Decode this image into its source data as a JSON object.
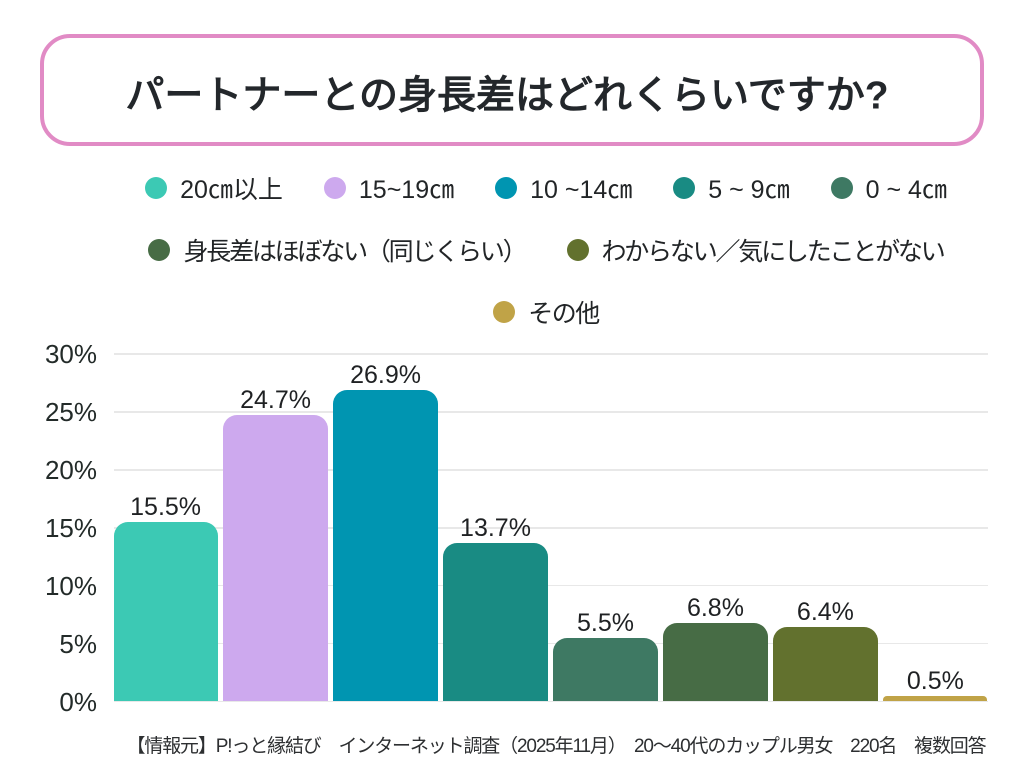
{
  "title": {
    "text": "パートナーとの身長差はどれくらいですか?",
    "border_color": "#e18bc5",
    "text_color": "#23272b"
  },
  "chart_data": {
    "type": "bar",
    "title": "パートナーとの身長差はどれくらいですか?",
    "categories": [
      "20㎝以上",
      "15~19㎝",
      "10 ~14㎝",
      "5 ~ 9㎝",
      "0 ~ 4㎝",
      "身長差はほぼない（同じくらい）",
      "わからない／気にしたことがない",
      "その他"
    ],
    "values": [
      15.5,
      24.7,
      26.9,
      13.7,
      5.5,
      6.8,
      6.4,
      0.5
    ],
    "value_labels": [
      "15.5%",
      "24.7%",
      "26.9%",
      "13.7%",
      "5.5%",
      "6.8%",
      "6.4%",
      "0.5%"
    ],
    "colors": [
      "#3cc9b4",
      "#cda9ee",
      "#0095b1",
      "#198b83",
      "#3e7963",
      "#476c45",
      "#62712e",
      "#c0a347"
    ],
    "y_ticks": [
      "0%",
      "5%",
      "10%",
      "15%",
      "20%",
      "25%",
      "30%"
    ],
    "y_tick_values": [
      0,
      5,
      10,
      15,
      20,
      25,
      30
    ],
    "ylim": [
      0,
      30
    ],
    "grid": true,
    "legend_position": "top-center",
    "legend_rows": [
      [
        0,
        1,
        2,
        3,
        4
      ],
      [
        5,
        6
      ],
      [
        7
      ]
    ]
  },
  "footer": {
    "text": "【情報元】P!っと縁結び　インターネット調査（2025年11月）　20〜40代のカップル男女　220名　複数回答"
  }
}
